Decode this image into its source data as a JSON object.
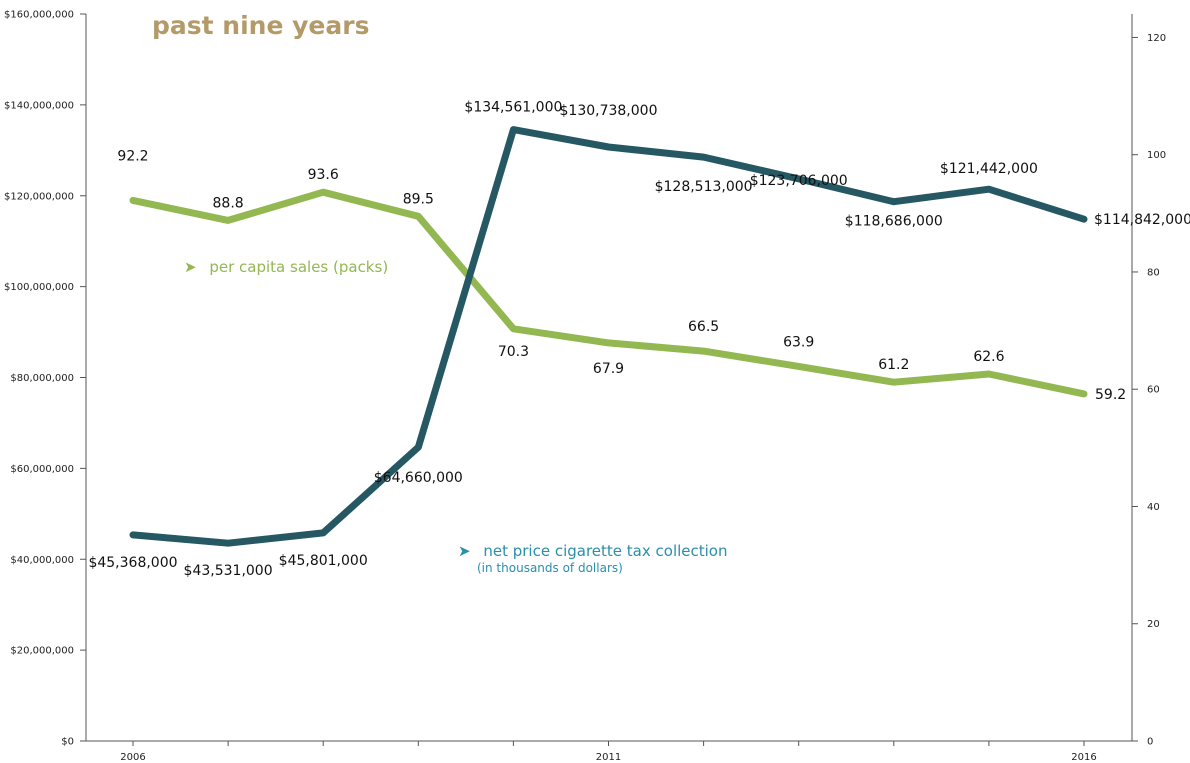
{
  "chart_data": {
    "type": "line",
    "title": "past nine years",
    "x": [
      2006,
      2007,
      2008,
      2009,
      2010,
      2011,
      2012,
      2013,
      2014,
      2015,
      2016
    ],
    "x_tick_labels": [
      "2006",
      "2011",
      "2016"
    ],
    "y_left": {
      "range": [
        0,
        160000000
      ],
      "tick_labels": [
        "$0",
        "$20,000,000",
        "$40,000,000",
        "$60,000,000",
        "$80,000,000",
        "$100,000,000",
        "$120,000,000",
        "$140,000,000",
        "$160,000,000"
      ]
    },
    "y_right": {
      "range": [
        0,
        124
      ],
      "tick_labels": [
        "0",
        "20",
        "40",
        "60",
        "80",
        "100",
        "120"
      ]
    },
    "series": [
      {
        "name": "net price cigarette tax collection",
        "name_note": "(in thousands of dollars)",
        "axis": "left",
        "color": "#265863",
        "values": [
          45368000,
          43531000,
          45801000,
          64660000,
          134561000,
          130738000,
          128513000,
          123706000,
          118686000,
          121442000,
          114842000
        ],
        "labels": [
          "$45,368,000",
          "$43,531,000",
          "$45,801,000",
          "$64,660,000",
          "$134,561,000",
          "$130,738,000",
          "$128,513,000",
          "$123,706,000",
          "$118,686,000",
          "$121,442,000",
          "$114,842,000"
        ]
      },
      {
        "name": "per capita sales (packs)",
        "axis": "right",
        "color": "#93b851",
        "values": [
          92.2,
          88.8,
          93.6,
          89.5,
          70.3,
          67.9,
          66.5,
          63.9,
          61.2,
          62.6,
          59.2
        ],
        "labels": [
          "92.2",
          "88.8",
          "93.6",
          "89.5",
          "70.3",
          "67.9",
          "66.5",
          "63.9",
          "61.2",
          "62.6",
          "59.2"
        ]
      }
    ],
    "legend_arrow": "➤",
    "grid": false
  }
}
